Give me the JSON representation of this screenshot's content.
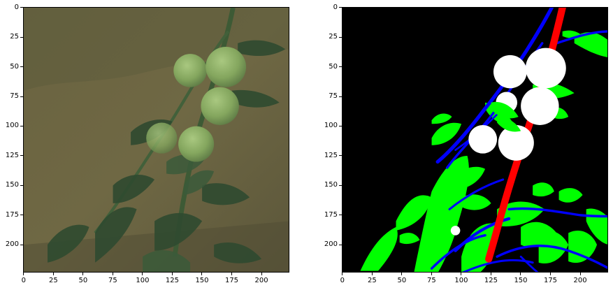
{
  "left_panel": {
    "content": "photo-tomato-plant",
    "x_ticks": [
      "0",
      "25",
      "50",
      "75",
      "100",
      "125",
      "150",
      "175",
      "200"
    ],
    "y_ticks": [
      "0",
      "25",
      "50",
      "75",
      "100",
      "125",
      "150",
      "175",
      "200"
    ],
    "x_max": 224,
    "y_max": 224
  },
  "right_panel": {
    "content": "segmentation-mask",
    "x_ticks": [
      "0",
      "25",
      "50",
      "75",
      "100",
      "125",
      "150",
      "175",
      "200"
    ],
    "y_ticks": [
      "0",
      "25",
      "50",
      "75",
      "100",
      "125",
      "150",
      "175",
      "200"
    ],
    "x_max": 224,
    "y_max": 224,
    "colors": {
      "background": "#000000",
      "fruit": "#ffffff",
      "main_stem": "#ff0000",
      "branches": "#0000ff",
      "leaves": "#00ff00"
    }
  }
}
